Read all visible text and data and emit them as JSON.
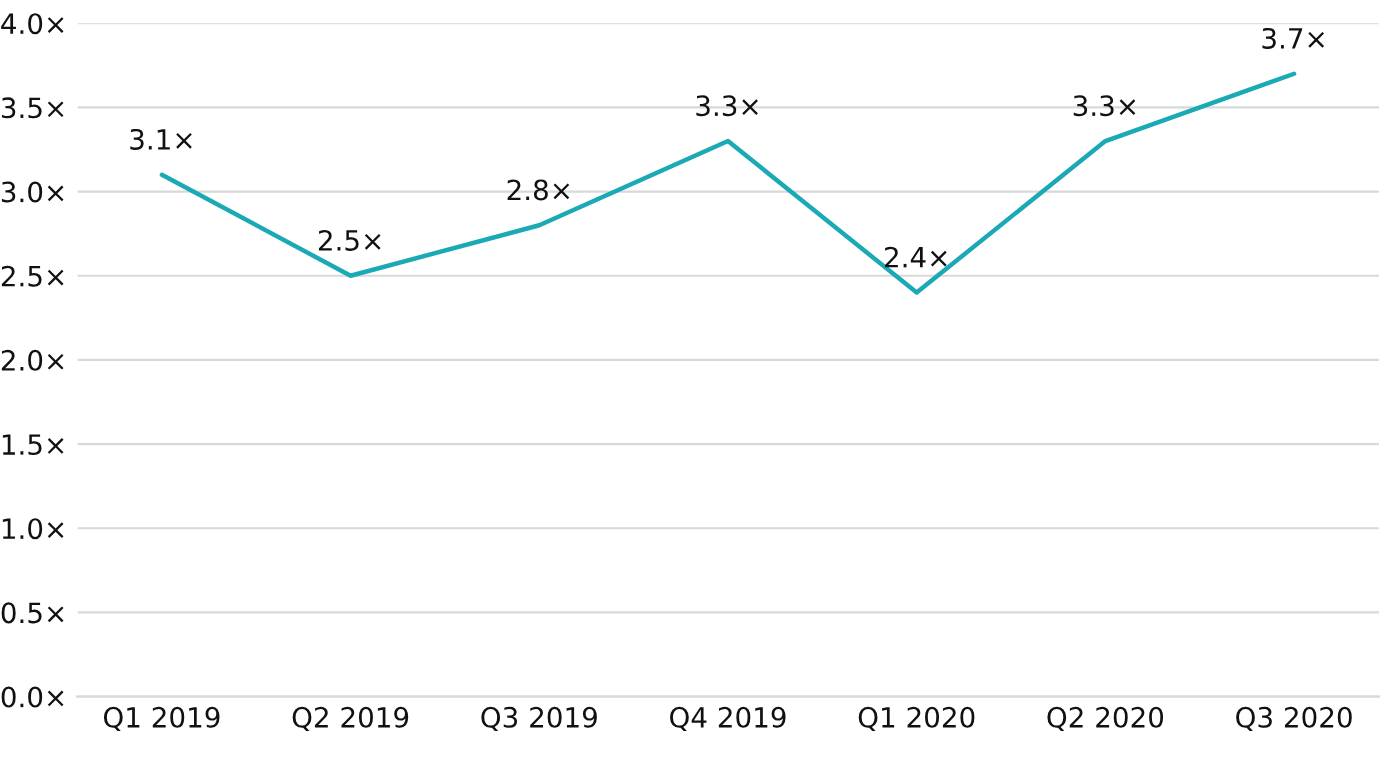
{
  "chart_data": {
    "type": "line",
    "categories": [
      "Q1 2019",
      "Q2 2019",
      "Q3 2019",
      "Q4 2019",
      "Q1 2020",
      "Q2 2020",
      "Q3 2020"
    ],
    "series": [
      {
        "color": "#1ba9b5",
        "values": [
          3.1,
          2.5,
          2.8,
          3.3,
          2.4,
          3.3,
          3.7
        ],
        "value_labels": [
          "3.1×",
          "2.5×",
          "2.8×",
          "3.3×",
          "2.4×",
          "3.3×",
          "3.7×"
        ]
      }
    ],
    "ylim": [
      0,
      4.0
    ],
    "yticks": [
      {
        "value": 0,
        "label": "0.0×"
      },
      {
        "value": 0.5,
        "label": "0.5×"
      },
      {
        "value": 1.0,
        "label": "1.0×"
      },
      {
        "value": 1.5,
        "label": "1.5×"
      },
      {
        "value": 2.0,
        "label": "2.0×"
      },
      {
        "value": 2.5,
        "label": "2.5×"
      },
      {
        "value": 3.0,
        "label": "3.0×"
      },
      {
        "value": 3.5,
        "label": "3.5×"
      },
      {
        "value": 4.0,
        "label": "4.0×"
      }
    ],
    "grid": "y",
    "marker": "none",
    "line_style": "solid",
    "legend": false
  }
}
